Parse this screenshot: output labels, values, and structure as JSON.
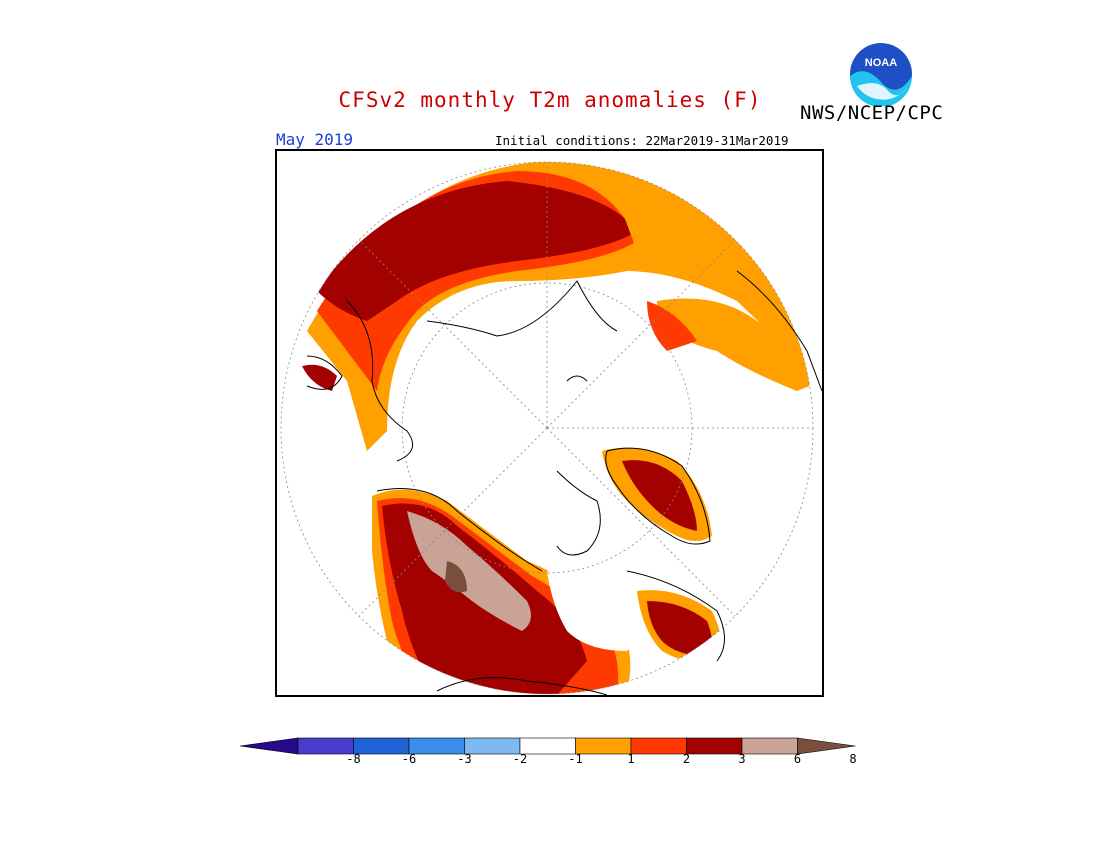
{
  "title": "CFSv2 monthly T2m anomalies (F)",
  "agency": "NWS/NCEP/CPC",
  "logo_text": "NOAA",
  "valid_month": "May 2019",
  "initial_conditions": "Initial conditions: 22Mar2019-31Mar2019",
  "legend": {
    "colors": [
      "#2a0a8c",
      "#4a3ccc",
      "#1f63d6",
      "#3a8eea",
      "#7eb9f2",
      "#ffffff",
      "#ff9f00",
      "#ff3a00",
      "#a30000",
      "#c9a496",
      "#7a4e3c"
    ],
    "ticks": [
      "-8",
      "-6",
      "-3",
      "-2",
      "-1",
      "1",
      "2",
      "3",
      "6",
      "8"
    ]
  }
}
